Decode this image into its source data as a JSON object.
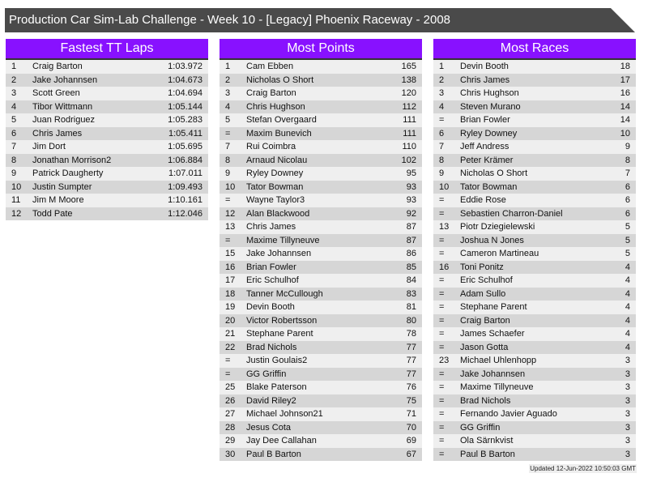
{
  "title": "Production Car Sim-Lab Challenge - Week 10 - [Legacy] Phoenix Raceway - 2008",
  "colors": {
    "header_bg": "#4a4a4a",
    "panel_header": "#8811ff",
    "row_light": "#efefef",
    "row_dark": "#d6d6d6"
  },
  "panels": [
    {
      "title": "Fastest TT Laps",
      "rows": [
        [
          "1",
          "Craig Barton",
          "1:03.972"
        ],
        [
          "2",
          "Jake Johannsen",
          "1:04.673"
        ],
        [
          "3",
          "Scott Green",
          "1:04.694"
        ],
        [
          "4",
          "Tibor Wittmann",
          "1:05.144"
        ],
        [
          "5",
          "Juan Rodriguez",
          "1:05.283"
        ],
        [
          "6",
          "Chris James",
          "1:05.411"
        ],
        [
          "7",
          "Jim Dort",
          "1:05.695"
        ],
        [
          "8",
          "Jonathan Morrison2",
          "1:06.884"
        ],
        [
          "9",
          "Patrick Daugherty",
          "1:07.011"
        ],
        [
          "10",
          "Justin Sumpter",
          "1:09.493"
        ],
        [
          "11",
          "Jim M Moore",
          "1:10.161"
        ],
        [
          "12",
          "Todd Pate",
          "1:12.046"
        ]
      ]
    },
    {
      "title": "Most Points",
      "rows": [
        [
          "1",
          "Cam Ebben",
          "165"
        ],
        [
          "2",
          "Nicholas O Short",
          "138"
        ],
        [
          "3",
          "Craig Barton",
          "120"
        ],
        [
          "4",
          "Chris Hughson",
          "112"
        ],
        [
          "5",
          "Stefan Overgaard",
          "111"
        ],
        [
          "=",
          "Maxim Bunevich",
          "111"
        ],
        [
          "7",
          "Rui Coimbra",
          "110"
        ],
        [
          "8",
          "Arnaud Nicolau",
          "102"
        ],
        [
          "9",
          "Ryley Downey",
          "95"
        ],
        [
          "10",
          "Tator Bowman",
          "93"
        ],
        [
          "=",
          "Wayne Taylor3",
          "93"
        ],
        [
          "12",
          "Alan Blackwood",
          "92"
        ],
        [
          "13",
          "Chris James",
          "87"
        ],
        [
          "=",
          "Maxime Tillyneuve",
          "87"
        ],
        [
          "15",
          "Jake Johannsen",
          "86"
        ],
        [
          "16",
          "Brian Fowler",
          "85"
        ],
        [
          "17",
          "Eric Schulhof",
          "84"
        ],
        [
          "18",
          "Tanner McCullough",
          "83"
        ],
        [
          "19",
          "Devin Booth",
          "81"
        ],
        [
          "20",
          "Victor Robertsson",
          "80"
        ],
        [
          "21",
          "Stephane Parent",
          "78"
        ],
        [
          "22",
          "Brad Nichols",
          "77"
        ],
        [
          "=",
          "Justin Goulais2",
          "77"
        ],
        [
          "=",
          "GG Griffin",
          "77"
        ],
        [
          "25",
          "Blake Paterson",
          "76"
        ],
        [
          "26",
          "David Riley2",
          "75"
        ],
        [
          "27",
          "Michael Johnson21",
          "71"
        ],
        [
          "28",
          "Jesus Cota",
          "70"
        ],
        [
          "29",
          "Jay Dee Callahan",
          "69"
        ],
        [
          "30",
          "Paul B Barton",
          "67"
        ]
      ]
    },
    {
      "title": "Most Races",
      "rows": [
        [
          "1",
          "Devin Booth",
          "18"
        ],
        [
          "2",
          "Chris James",
          "17"
        ],
        [
          "3",
          "Chris Hughson",
          "16"
        ],
        [
          "4",
          "Steven Murano",
          "14"
        ],
        [
          "=",
          "Brian Fowler",
          "14"
        ],
        [
          "6",
          "Ryley Downey",
          "10"
        ],
        [
          "7",
          "Jeff Andress",
          "9"
        ],
        [
          "8",
          "Peter Krämer",
          "8"
        ],
        [
          "9",
          "Nicholas O Short",
          "7"
        ],
        [
          "10",
          "Tator Bowman",
          "6"
        ],
        [
          "=",
          "Eddie Rose",
          "6"
        ],
        [
          "=",
          "Sebastien Charron-Daniel",
          "6"
        ],
        [
          "13",
          "Piotr Dziegielewski",
          "5"
        ],
        [
          "=",
          "Joshua N Jones",
          "5"
        ],
        [
          "=",
          "Cameron Martineau",
          "5"
        ],
        [
          "16",
          "Toni Ponitz",
          "4"
        ],
        [
          "=",
          "Eric Schulhof",
          "4"
        ],
        [
          "=",
          "Adam Sullo",
          "4"
        ],
        [
          "=",
          "Stephane Parent",
          "4"
        ],
        [
          "=",
          "Craig Barton",
          "4"
        ],
        [
          "=",
          "James Schaefer",
          "4"
        ],
        [
          "=",
          "Jason Gotta",
          "4"
        ],
        [
          "23",
          "Michael Uhlenhopp",
          "3"
        ],
        [
          "=",
          "Jake Johannsen",
          "3"
        ],
        [
          "=",
          "Maxime Tillyneuve",
          "3"
        ],
        [
          "=",
          "Brad Nichols",
          "3"
        ],
        [
          "=",
          "Fernando Javier Aguado",
          "3"
        ],
        [
          "=",
          "GG Griffin",
          "3"
        ],
        [
          "=",
          "Ola Särnkvist",
          "3"
        ],
        [
          "=",
          "Paul B Barton",
          "3"
        ]
      ]
    }
  ],
  "updated": "Updated 12-Jun-2022 10:50:03 GMT"
}
